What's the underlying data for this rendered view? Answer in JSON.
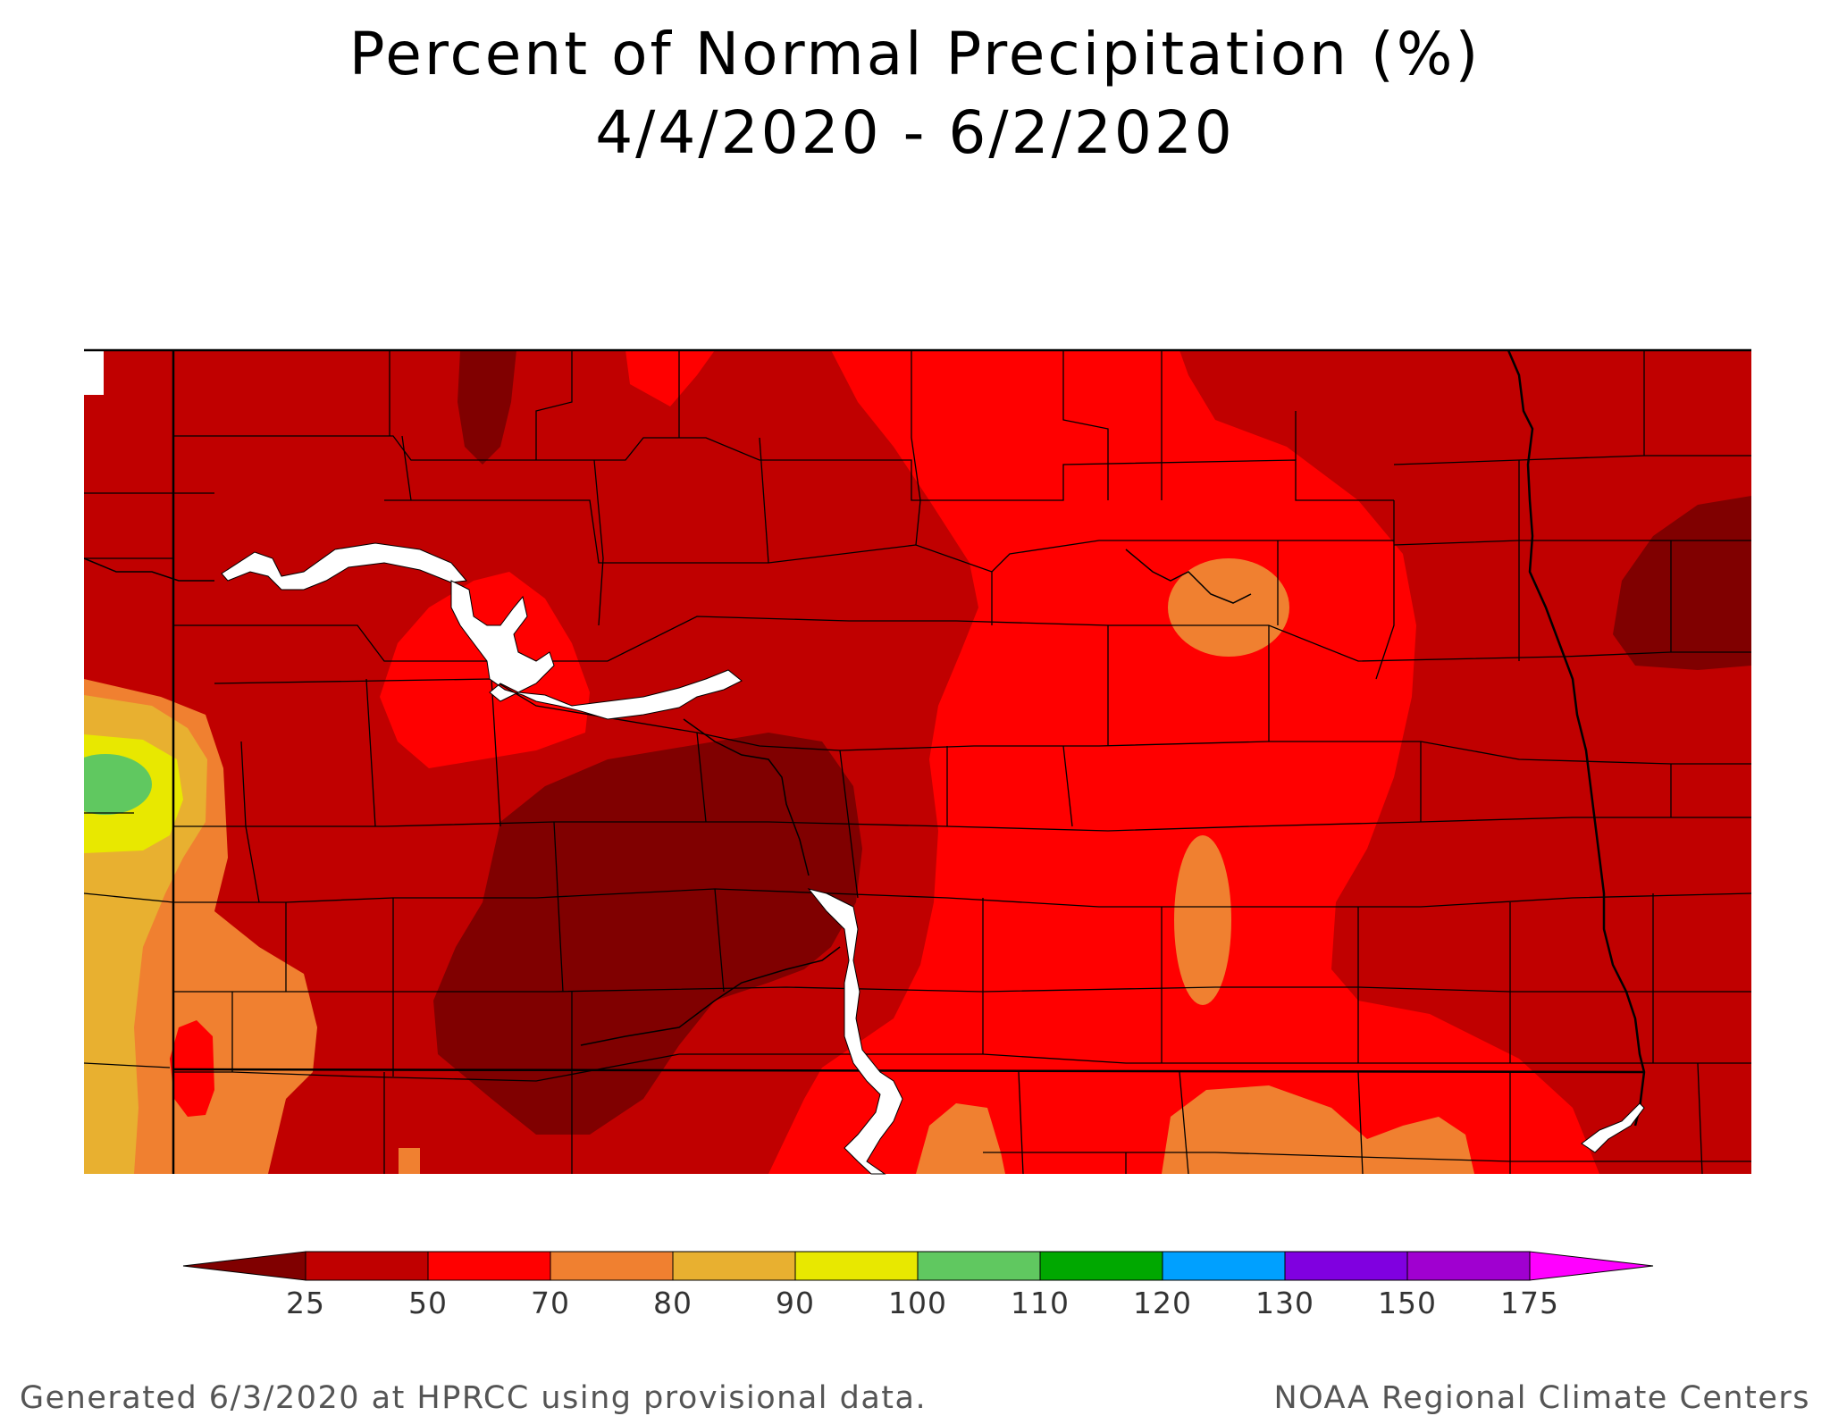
{
  "title": {
    "line1": "Percent of Normal Precipitation (%)",
    "line2": "4/4/2020 - 6/2/2020"
  },
  "legend": {
    "colors": [
      "#800000",
      "#C00000",
      "#FF0000",
      "#F08030",
      "#E8B030",
      "#E8E800",
      "#60C860",
      "#00A800",
      "#00A0FF",
      "#8000E0",
      "#A000D0",
      "#FF00FF"
    ],
    "labels": [
      "25",
      "50",
      "70",
      "80",
      "90",
      "100",
      "110",
      "120",
      "130",
      "150",
      "175"
    ]
  },
  "footer": {
    "left": "Generated 6/3/2020 at HPRCC using provisional data.",
    "right": "NOAA Regional Climate Centers"
  }
}
